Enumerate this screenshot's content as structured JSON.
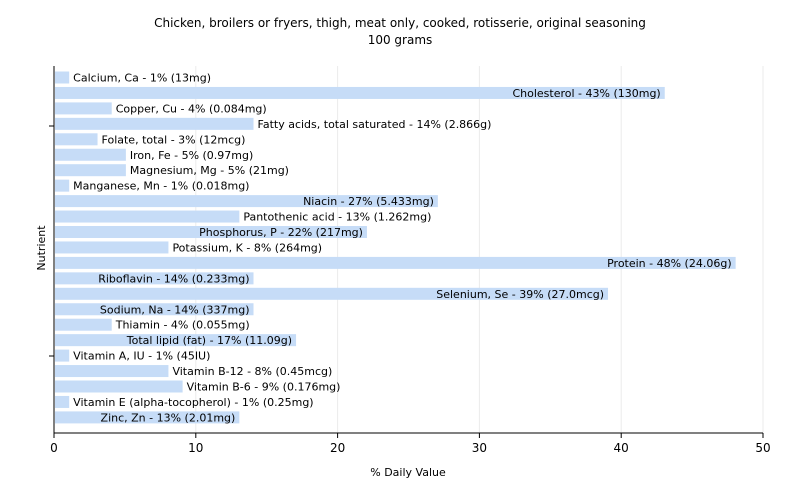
{
  "chart_data": {
    "type": "bar",
    "orientation": "horizontal",
    "title": "Chicken, broilers or fryers, thigh, meat only, cooked, rotisserie, original seasoning",
    "subtitle": "100 grams",
    "xlabel": "% Daily Value",
    "ylabel": "Nutrient",
    "xlim": [
      0,
      50
    ],
    "xticks": [
      0,
      10,
      20,
      30,
      40,
      50
    ],
    "grid": true,
    "colors": {
      "bar": "#c6dcf7",
      "grid": "#ebebeb",
      "axis": "#000000",
      "plot_bg": "#ffffff"
    },
    "categories": [
      "Calcium, Ca",
      "Cholesterol",
      "Copper, Cu",
      "Fatty acids, total saturated",
      "Folate, total",
      "Iron, Fe",
      "Magnesium, Mg",
      "Manganese, Mn",
      "Niacin",
      "Pantothenic acid",
      "Phosphorus, P",
      "Potassium, K",
      "Protein",
      "Riboflavin",
      "Selenium, Se",
      "Sodium, Na",
      "Thiamin",
      "Total lipid (fat)",
      "Vitamin A, IU",
      "Vitamin B-12",
      "Vitamin B-6",
      "Vitamin E (alpha-tocopherol)",
      "Zinc, Zn"
    ],
    "values": [
      1,
      43,
      4,
      14,
      3,
      5,
      5,
      1,
      27,
      13,
      22,
      8,
      48,
      14,
      39,
      14,
      4,
      17,
      1,
      8,
      9,
      1,
      13
    ],
    "labels": [
      "Calcium, Ca - 1% (13mg)",
      "Cholesterol - 43% (130mg)",
      "Copper, Cu - 4% (0.084mg)",
      "Fatty acids, total saturated - 14% (2.866g)",
      "Folate, total - 3% (12mcg)",
      "Iron, Fe - 5% (0.97mg)",
      "Magnesium, Mg - 5% (21mg)",
      "Manganese, Mn - 1% (0.018mg)",
      "Niacin - 27% (5.433mg)",
      "Pantothenic acid - 13% (1.262mg)",
      "Phosphorus, P - 22% (217mg)",
      "Potassium, K - 8% (264mg)",
      "Protein - 48% (24.06g)",
      "Riboflavin - 14% (0.233mg)",
      "Selenium, Se - 39% (27.0mcg)",
      "Sodium, Na - 14% (337mg)",
      "Thiamin - 4% (0.055mg)",
      "Total lipid (fat) - 17% (11.09g)",
      "Vitamin A, IU - 1% (45IU)",
      "Vitamin B-12 - 8% (0.45mcg)",
      "Vitamin B-6 - 9% (0.176mg)",
      "Vitamin E (alpha-tocopherol) - 1% (0.25mg)",
      "Zinc, Zn - 13% (2.01mg)"
    ]
  }
}
